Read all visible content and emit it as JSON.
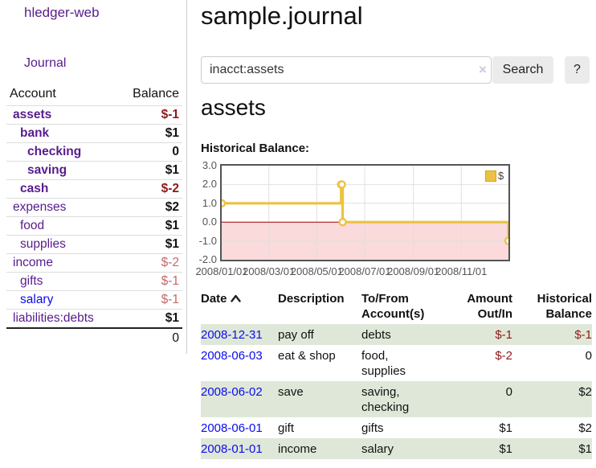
{
  "app": {
    "title": "hledger-web",
    "nav_journal": "Journal"
  },
  "sidebar": {
    "header": {
      "account": "Account",
      "balance": "Balance"
    },
    "accounts": [
      {
        "name": "assets",
        "balance": "$-1",
        "indent": 1,
        "bold": true,
        "tone": "neg-strong",
        "link": "visited"
      },
      {
        "name": "bank",
        "balance": "$1",
        "indent": 2,
        "bold": true,
        "tone": "pos",
        "link": "visited"
      },
      {
        "name": "checking",
        "balance": "0",
        "indent": 3,
        "bold": true,
        "tone": "pos",
        "link": "visited"
      },
      {
        "name": "saving",
        "balance": "$1",
        "indent": 3,
        "bold": true,
        "tone": "pos",
        "link": "visited"
      },
      {
        "name": "cash",
        "balance": "$-2",
        "indent": 2,
        "bold": true,
        "tone": "neg-strong",
        "link": "visited"
      },
      {
        "name": "expenses",
        "balance": "$2",
        "indent": 1,
        "bold": false,
        "tone": "pos",
        "link": "visited"
      },
      {
        "name": "food",
        "balance": "$1",
        "indent": 2,
        "bold": false,
        "tone": "pos",
        "link": "visited"
      },
      {
        "name": "supplies",
        "balance": "$1",
        "indent": 2,
        "bold": false,
        "tone": "pos",
        "link": "visited"
      },
      {
        "name": "income",
        "balance": "$-2",
        "indent": 1,
        "bold": false,
        "tone": "neg-muted",
        "link": "visited"
      },
      {
        "name": "gifts",
        "balance": "$-1",
        "indent": 2,
        "bold": false,
        "tone": "neg-muted",
        "link": "visited"
      },
      {
        "name": "salary",
        "balance": "$-1",
        "indent": 2,
        "bold": false,
        "tone": "neg-muted",
        "link": "unvisited"
      },
      {
        "name": "liabilities:debts",
        "balance": "$1",
        "indent": 1,
        "bold": false,
        "tone": "pos",
        "link": "visited"
      }
    ],
    "total": "0"
  },
  "main": {
    "title": "sample.journal",
    "search": {
      "value": "inacct:assets",
      "clear_icon": "×",
      "button": "Search",
      "help_button": "?"
    },
    "account_heading": "assets",
    "chart_label": "Historical Balance:"
  },
  "chart_data": {
    "type": "line",
    "title": "Historical Balance",
    "step": true,
    "series": [
      {
        "name": "$",
        "color": "#edc240",
        "points": [
          [
            "2008-01-01",
            1.0
          ],
          [
            "2008-06-01",
            2.0
          ],
          [
            "2008-06-02",
            2.0
          ],
          [
            "2008-06-03",
            0.0
          ],
          [
            "2008-12-31",
            -1.0
          ]
        ]
      }
    ],
    "x_range": [
      "2008-01-01",
      "2008-12-31"
    ],
    "x_ticks": [
      {
        "label": "2008/01/01",
        "date": "2008-01-01"
      },
      {
        "label": "2008/03/01",
        "date": "2008-03-01"
      },
      {
        "label": "2008/05/01",
        "date": "2008-05-01"
      },
      {
        "label": "2008/07/01",
        "date": "2008-07-01"
      },
      {
        "label": "2008/09/01",
        "date": "2008-09-01"
      },
      {
        "label": "2008/11/01",
        "date": "2008-11-01"
      }
    ],
    "y_ticks": [
      "3.0",
      "2.0",
      "1.0",
      "0.0",
      "-1.0",
      "-2.0"
    ],
    "ylim": [
      -2,
      3
    ],
    "grid": true,
    "legend": {
      "label": "$",
      "position": "top-right"
    },
    "colors": {
      "line": "#edc240",
      "marker_fill": "#ffffff",
      "gridline": "#e0e0e0",
      "border": "#545454",
      "negative_region_fill": "#fadada",
      "zero_line": "#a40000"
    }
  },
  "register": {
    "headers": {
      "date": "Date",
      "description": "Description",
      "accounts": "To/From Account(s)",
      "amount": "Amount Out/In",
      "balance": "Historical Balance"
    },
    "sort": {
      "column": "date",
      "direction": "asc"
    },
    "rows": [
      {
        "date": "2008-12-31",
        "description": "pay off",
        "accounts": "debts",
        "amount": "$-1",
        "balance": "$-1",
        "amount_neg": true,
        "balance_neg": true,
        "shaded": true
      },
      {
        "date": "2008-06-03",
        "description": "eat & shop",
        "accounts": "food, supplies",
        "amount": "$-2",
        "balance": "0",
        "amount_neg": true,
        "balance_neg": false,
        "shaded": false
      },
      {
        "date": "2008-06-02",
        "description": "save",
        "accounts": "saving, checking",
        "amount": "0",
        "balance": "$2",
        "amount_neg": false,
        "balance_neg": false,
        "shaded": true
      },
      {
        "date": "2008-06-01",
        "description": "gift",
        "accounts": "gifts",
        "amount": "$1",
        "balance": "$2",
        "amount_neg": false,
        "balance_neg": false,
        "shaded": false
      },
      {
        "date": "2008-01-01",
        "description": "income",
        "accounts": "salary",
        "amount": "$1",
        "balance": "$1",
        "amount_neg": false,
        "balance_neg": false,
        "shaded": true
      }
    ]
  }
}
